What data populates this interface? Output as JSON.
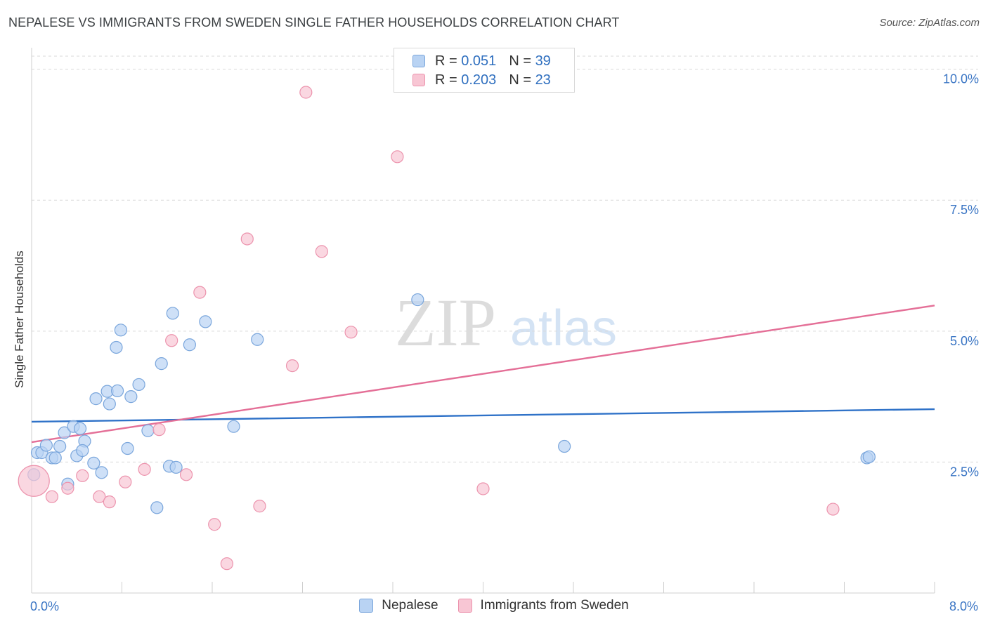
{
  "title": "NEPALESE VS IMMIGRANTS FROM SWEDEN SINGLE FATHER HOUSEHOLDS CORRELATION CHART",
  "source": "Source: ZipAtlas.com",
  "watermark": {
    "zip": "ZIP",
    "atlas": "atlas"
  },
  "legend": {
    "rows": [
      {
        "r_label": "R =",
        "r_value": "0.051",
        "n_label": "N =",
        "n_value": "39"
      },
      {
        "r_label": "R =",
        "r_value": "0.203",
        "n_label": "N =",
        "n_value": "23"
      }
    ]
  },
  "colors": {
    "blue_fill": "#b9d3f3",
    "blue_stroke": "#7aa6dc",
    "blue_line": "#2f72c8",
    "pink_fill": "#f8c6d4",
    "pink_stroke": "#ec93ad",
    "pink_line": "#e46f97",
    "tick_label": "#3a75c4",
    "grid": "#d9d9d9"
  },
  "chart_data": {
    "type": "scatter",
    "xlabel": "",
    "ylabel": "Single Father Households",
    "xlim": [
      0,
      8
    ],
    "ylim": [
      0,
      10.25
    ],
    "x_tick_labels": [
      {
        "value": 0,
        "label": "0.0%"
      },
      {
        "value": 8,
        "label": "8.0%"
      }
    ],
    "y_tick_labels": [
      {
        "value": 2.5,
        "label": "2.5%"
      },
      {
        "value": 5.0,
        "label": "5.0%"
      },
      {
        "value": 7.5,
        "label": "7.5%"
      },
      {
        "value": 10.0,
        "label": "10.0%"
      }
    ],
    "x_minor_ticks": [
      0,
      0.8,
      1.6,
      2.4,
      3.2,
      4.0,
      4.8,
      5.6,
      6.4,
      7.2,
      8.0
    ],
    "grid": true,
    "legend_position": "top-center",
    "series": [
      {
        "name": "Nepalese",
        "color": "blue",
        "trend": {
          "x": [
            0,
            8
          ],
          "y": [
            3.27,
            3.51
          ]
        },
        "points": [
          {
            "x": 0.02,
            "y": 2.26,
            "big": false
          },
          {
            "x": 0.05,
            "y": 2.68
          },
          {
            "x": 0.09,
            "y": 2.68
          },
          {
            "x": 0.13,
            "y": 2.82
          },
          {
            "x": 0.18,
            "y": 2.58
          },
          {
            "x": 0.21,
            "y": 2.58
          },
          {
            "x": 0.25,
            "y": 2.8
          },
          {
            "x": 0.29,
            "y": 3.06
          },
          {
            "x": 0.32,
            "y": 2.08
          },
          {
            "x": 0.37,
            "y": 3.18
          },
          {
            "x": 0.4,
            "y": 2.62
          },
          {
            "x": 0.43,
            "y": 3.14
          },
          {
            "x": 0.47,
            "y": 2.9
          },
          {
            "x": 0.45,
            "y": 2.72
          },
          {
            "x": 0.55,
            "y": 2.48
          },
          {
            "x": 0.57,
            "y": 3.71
          },
          {
            "x": 0.62,
            "y": 2.3
          },
          {
            "x": 0.67,
            "y": 3.85
          },
          {
            "x": 0.69,
            "y": 3.61
          },
          {
            "x": 0.75,
            "y": 4.69
          },
          {
            "x": 0.76,
            "y": 3.86
          },
          {
            "x": 0.79,
            "y": 5.02
          },
          {
            "x": 0.85,
            "y": 2.76
          },
          {
            "x": 0.88,
            "y": 3.75
          },
          {
            "x": 0.95,
            "y": 3.98
          },
          {
            "x": 1.03,
            "y": 3.1
          },
          {
            "x": 1.11,
            "y": 1.63
          },
          {
            "x": 1.15,
            "y": 4.38
          },
          {
            "x": 1.22,
            "y": 2.42
          },
          {
            "x": 1.25,
            "y": 5.34
          },
          {
            "x": 1.28,
            "y": 2.4
          },
          {
            "x": 1.4,
            "y": 4.74
          },
          {
            "x": 1.54,
            "y": 5.18
          },
          {
            "x": 1.79,
            "y": 3.18
          },
          {
            "x": 2.0,
            "y": 4.84
          },
          {
            "x": 3.42,
            "y": 5.6
          },
          {
            "x": 4.72,
            "y": 2.8
          },
          {
            "x": 7.4,
            "y": 2.58
          },
          {
            "x": 7.42,
            "y": 2.6
          }
        ]
      },
      {
        "name": "Immigrants from Sweden",
        "color": "pink",
        "trend": {
          "x": [
            0,
            8
          ],
          "y": [
            2.88,
            5.49
          ]
        },
        "points": [
          {
            "x": 0.02,
            "y": 2.14,
            "big": true
          },
          {
            "x": 0.18,
            "y": 1.84
          },
          {
            "x": 0.32,
            "y": 2.0
          },
          {
            "x": 0.45,
            "y": 2.24
          },
          {
            "x": 0.6,
            "y": 1.84
          },
          {
            "x": 0.69,
            "y": 1.74
          },
          {
            "x": 0.83,
            "y": 2.12
          },
          {
            "x": 1.0,
            "y": 2.36
          },
          {
            "x": 1.13,
            "y": 3.12
          },
          {
            "x": 1.24,
            "y": 4.82
          },
          {
            "x": 1.37,
            "y": 2.26
          },
          {
            "x": 1.49,
            "y": 5.74
          },
          {
            "x": 1.62,
            "y": 1.31
          },
          {
            "x": 1.73,
            "y": 0.56
          },
          {
            "x": 1.91,
            "y": 6.76
          },
          {
            "x": 2.02,
            "y": 1.66
          },
          {
            "x": 2.31,
            "y": 4.34
          },
          {
            "x": 2.43,
            "y": 9.56
          },
          {
            "x": 2.57,
            "y": 6.52
          },
          {
            "x": 2.83,
            "y": 4.98
          },
          {
            "x": 3.24,
            "y": 8.33
          },
          {
            "x": 4.0,
            "y": 1.99
          },
          {
            "x": 7.1,
            "y": 1.6
          }
        ]
      }
    ]
  }
}
